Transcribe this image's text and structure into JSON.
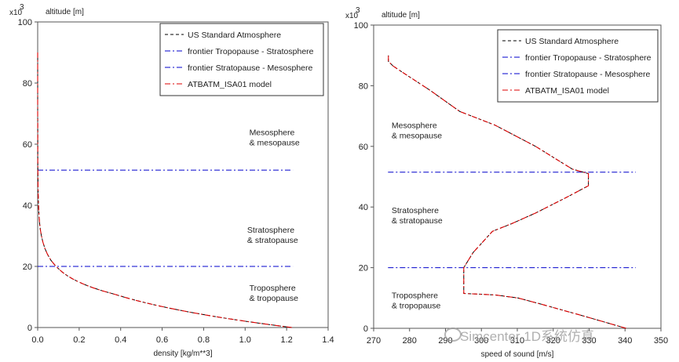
{
  "chart_data": [
    {
      "type": "line",
      "xlabel": "density [kg/m**3]",
      "ylabel": "altitude [m]",
      "y_multiplier": "x10",
      "y_multiplier_exp": "3",
      "xlim": [
        0,
        1.4
      ],
      "ylim": [
        0,
        100
      ],
      "xticks": [
        "0.0",
        "0.2",
        "0.4",
        "0.6",
        "0.8",
        "1.0",
        "1.2",
        "1.4"
      ],
      "yticks": [
        "0",
        "20",
        "40",
        "60",
        "80",
        "100"
      ],
      "legend": [
        {
          "label": "US Standard Atmosphere",
          "color": "#000000",
          "dash": "4 3"
        },
        {
          "label": "frontier Tropopause - Stratosphere",
          "color": "#0000cc",
          "dash": "7 3 2 3"
        },
        {
          "label": "frontier Stratopause - Mesosphere",
          "color": "#0000cc",
          "dash": "7 3 2 3"
        },
        {
          "label": "ATBATM_ISA01 model",
          "color": "#dd0000",
          "dash": "7 3 2 3"
        }
      ],
      "series": [
        {
          "name": "US Standard Atmosphere",
          "color": "#000000",
          "x": [
            1.225,
            1.112,
            1.007,
            0.909,
            0.819,
            0.736,
            0.66,
            0.59,
            0.526,
            0.467,
            0.414,
            0.365,
            0.312,
            0.267,
            0.228,
            0.195,
            0.166,
            0.142,
            0.121,
            0.104,
            0.088,
            0.064,
            0.047,
            0.034,
            0.025,
            0.018,
            0.013,
            0.0096,
            0.0071,
            0.0053,
            0.004,
            0.0024,
            0.0014,
            0.0008,
            0.0005,
            0.0003,
            0.0002,
            0.0001,
            5e-05,
            2e-05,
            5e-06
          ],
          "y": [
            0,
            1,
            2,
            3,
            4,
            5,
            6,
            7,
            8,
            9,
            10,
            11,
            12,
            13,
            14,
            15,
            16,
            17,
            18,
            19,
            20,
            22,
            24,
            26,
            28,
            30,
            32,
            34,
            36,
            38,
            40,
            44,
            48,
            52,
            56,
            60,
            65,
            70,
            75,
            80,
            90
          ]
        },
        {
          "name": "ATBATM_ISA01 model",
          "color": "#dd0000",
          "x": [
            1.225,
            1.112,
            1.007,
            0.909,
            0.819,
            0.736,
            0.66,
            0.59,
            0.526,
            0.467,
            0.414,
            0.365,
            0.312,
            0.267,
            0.228,
            0.195,
            0.166,
            0.142,
            0.121,
            0.104,
            0.088,
            0.064,
            0.047,
            0.034,
            0.025,
            0.018,
            0.013,
            0.0096,
            0.0071,
            0.0053,
            0.004,
            0.0024,
            0.0014,
            0.0008,
            0.0005,
            0.0003,
            0.0002,
            0.0001,
            5e-05,
            2e-05,
            5e-06
          ],
          "y": [
            0,
            1,
            2,
            3,
            4,
            5,
            6,
            7,
            8,
            9,
            10,
            11,
            12,
            13,
            14,
            15,
            16,
            17,
            18,
            19,
            20,
            22,
            24,
            26,
            28,
            30,
            32,
            34,
            36,
            38,
            40,
            44,
            48,
            52,
            56,
            60,
            65,
            70,
            75,
            80,
            90
          ]
        }
      ],
      "hlines": [
        {
          "name": "frontier Tropopause - Stratosphere",
          "y": 20,
          "x": [
            0,
            1.23
          ],
          "color": "#0000cc"
        },
        {
          "name": "frontier Stratopause - Mesosphere",
          "y": 51.5,
          "x": [
            0,
            1.23
          ],
          "color": "#0000cc"
        }
      ],
      "annotations": [
        {
          "lines": [
            "Mesosphere",
            "& mesopause"
          ],
          "x": 1.02,
          "y": 63
        },
        {
          "lines": [
            "Stratosphere",
            "& stratopause"
          ],
          "x": 1.01,
          "y": 31
        },
        {
          "lines": [
            "Troposphere",
            "& tropopause"
          ],
          "x": 1.02,
          "y": 12
        }
      ]
    },
    {
      "type": "line",
      "xlabel": "speed of sound [m/s]",
      "ylabel": "altitude [m]",
      "y_multiplier": "x10",
      "y_multiplier_exp": "3",
      "xlim": [
        270,
        350
      ],
      "ylim": [
        0,
        100
      ],
      "xticks": [
        "270",
        "280",
        "290",
        "300",
        "310",
        "320",
        "330",
        "340",
        "350"
      ],
      "yticks": [
        "0",
        "20",
        "40",
        "60",
        "80",
        "100"
      ],
      "legend": [
        {
          "label": "US Standard Atmosphere",
          "color": "#000000",
          "dash": "4 3"
        },
        {
          "label": "frontier Tropopause - Stratosphere",
          "color": "#0000cc",
          "dash": "7 3 2 3"
        },
        {
          "label": "frontier Stratopause - Mesosphere",
          "color": "#0000cc",
          "dash": "7 3 2 3"
        },
        {
          "label": "ATBATM_ISA01 model",
          "color": "#dd0000",
          "dash": "7 3 2 3"
        }
      ],
      "series": [
        {
          "name": "US Standard Atmosphere",
          "color": "#000000",
          "x": [
            340.3,
            334.5,
            328.6,
            322.6,
            316.5,
            310.2,
            303.8,
            295.1,
            295.1,
            295.1,
            297.7,
            303.1,
            308.4,
            315.1,
            323.4,
            329.8,
            329.8,
            325.3,
            315.1,
            303.8,
            294.0,
            285.7,
            277.3,
            275.4,
            274.1,
            274.1,
            274.1
          ],
          "y": [
            0,
            2,
            4,
            6,
            8,
            10,
            11,
            11.5,
            15,
            20,
            25,
            32,
            34.5,
            38,
            43,
            47,
            51,
            52.5,
            60,
            67,
            71.5,
            78.5,
            85,
            86.5,
            88,
            89,
            90
          ]
        },
        {
          "name": "ATBATM_ISA01 model",
          "color": "#dd0000",
          "x": [
            340.3,
            334.5,
            328.6,
            322.6,
            316.5,
            310.2,
            303.8,
            295.1,
            295.1,
            295.1,
            297.7,
            303.1,
            308.4,
            315.1,
            323.4,
            329.8,
            329.8,
            325.3,
            315.1,
            303.8,
            294.0,
            285.7,
            277.3,
            275.4,
            274.1,
            274.1,
            274.1
          ],
          "y": [
            0,
            2,
            4,
            6,
            8,
            10,
            11,
            11.5,
            15,
            20,
            25,
            32,
            34.5,
            38,
            43,
            47,
            51,
            52.5,
            60,
            67,
            71.5,
            78.5,
            85,
            86.5,
            88,
            89,
            90
          ]
        }
      ],
      "hlines": [
        {
          "name": "frontier Tropopause - Stratosphere",
          "y": 20,
          "x": [
            274,
            343
          ],
          "color": "#0000cc"
        },
        {
          "name": "frontier Stratopause - Mesosphere",
          "y": 51.5,
          "x": [
            274,
            343
          ],
          "color": "#0000cc"
        }
      ],
      "annotations": [
        {
          "lines": [
            "Mesosphere",
            "& mesopause"
          ],
          "x": 275,
          "y": 66
        },
        {
          "lines": [
            "Stratosphere",
            "& stratopause"
          ],
          "x": 275,
          "y": 38
        },
        {
          "lines": [
            "Troposphere",
            "& tropopause"
          ],
          "x": 275,
          "y": 10
        }
      ]
    }
  ],
  "watermark": "Simcenter 1D系统仿真"
}
